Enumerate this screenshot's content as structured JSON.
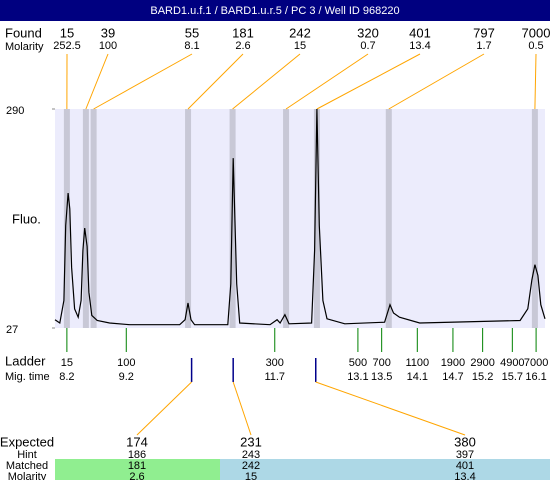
{
  "header": {
    "title": "BARD1.u.f.1 / BARD1.u.r.5 / PC 3 / Well ID 968220"
  },
  "chart_data": {
    "type": "line",
    "y_label": "Fluo.",
    "color": "#000000",
    "xlim": [
      8.0,
      16.25
    ],
    "ylim": [
      27,
      290
    ],
    "yticks": [
      27,
      290
    ],
    "x": [
      8.0,
      8.08,
      8.15,
      8.18,
      8.22,
      8.25,
      8.28,
      8.33,
      8.39,
      8.44,
      8.47,
      8.5,
      8.54,
      8.57,
      8.62,
      8.71,
      8.92,
      9.26,
      10.1,
      10.19,
      10.24,
      10.29,
      10.35,
      10.91,
      10.96,
      11.0,
      11.06,
      11.11,
      11.62,
      11.74,
      11.79,
      11.87,
      11.94,
      12.32,
      12.37,
      12.41,
      12.45,
      12.51,
      12.58,
      12.88,
      13.55,
      13.64,
      13.7,
      13.8,
      14.14,
      15.83,
      15.96,
      16.03,
      16.08,
      16.13,
      16.18,
      16.25
    ],
    "values": [
      37,
      33,
      60,
      150,
      189,
      170,
      100,
      50,
      40,
      60,
      120,
      147,
      125,
      70,
      42,
      36,
      33,
      31,
      31,
      37,
      57,
      37,
      31,
      31,
      80,
      231,
      80,
      33,
      31,
      37,
      33,
      43,
      32,
      33,
      120,
      290,
      150,
      60,
      38,
      32,
      34,
      55,
      45,
      40,
      33,
      36,
      50,
      85,
      103,
      90,
      55,
      38
    ]
  },
  "found": {
    "label": "Found",
    "molarity_label": "Molarity",
    "sizes": [
      15,
      39,
      55,
      181,
      242,
      320,
      401,
      797,
      7000
    ],
    "molarity": [
      252.5,
      100,
      8.1,
      2.6,
      15,
      0.7,
      13.4,
      1.7,
      0.5
    ],
    "times": [
      8.2,
      8.52,
      8.65,
      10.24,
      10.99,
      11.89,
      12.41,
      13.62,
      16.08
    ]
  },
  "ladder": {
    "label": "Ladder",
    "time_label": "Mig. time",
    "sizes": [
      15,
      100,
      300,
      500,
      700,
      1100,
      1900,
      2900,
      4900,
      7000
    ],
    "times": [
      8.2,
      9.2,
      11.7,
      13.1,
      13.5,
      14.1,
      14.7,
      15.2,
      15.7,
      16.1
    ]
  },
  "expected": {
    "label": "Expected",
    "hint_label": "Hint",
    "matched_label": "Matched",
    "molarity_label": "Molarity",
    "sizes": [
      174,
      231,
      380
    ],
    "hints": [
      186,
      243,
      397
    ],
    "matched": [
      181,
      242,
      401
    ],
    "molarity": [
      2.6,
      15,
      13.4
    ],
    "times": [
      10.3,
      11.0,
      12.39
    ]
  }
}
